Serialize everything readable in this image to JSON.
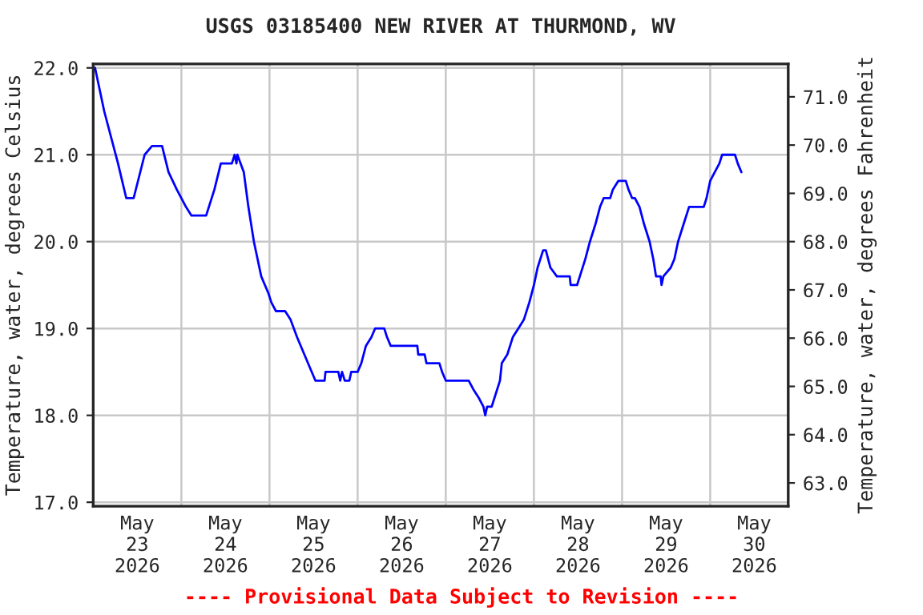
{
  "chart_data": {
    "type": "line",
    "title": "USGS 03185400 NEW RIVER AT THURMOND, WV",
    "ylabel": "Temperature, water, degrees Celsius",
    "y2label": "Temperature, water, degrees Fahrenheit",
    "annotations": [
      "---- Provisional Data Subject to Revision ----"
    ],
    "grid": true,
    "legend": false,
    "marker": "none",
    "line_style": "solid",
    "xlim": [
      "2026-05-23T00:00",
      "2026-05-30T21:15"
    ],
    "xticks": [
      {
        "value": "2026-05-24T00:00",
        "label": null
      },
      {
        "value": "2026-05-25T00:00",
        "label": null
      },
      {
        "value": "2026-05-26T00:00",
        "label": null
      },
      {
        "value": "2026-05-27T00:00",
        "label": null
      },
      {
        "value": "2026-05-28T00:00",
        "label": null
      },
      {
        "value": "2026-05-29T00:00",
        "label": null
      },
      {
        "value": "2026-05-30T00:00",
        "label": null
      },
      {
        "value": "2026-05-23T12:00",
        "label": "May\n23\n2026"
      },
      {
        "value": "2026-05-24T12:00",
        "label": "May\n24\n2026"
      },
      {
        "value": "2026-05-25T12:00",
        "label": "May\n25\n2026"
      },
      {
        "value": "2026-05-26T12:00",
        "label": "May\n26\n2026"
      },
      {
        "value": "2026-05-27T12:00",
        "label": "May\n27\n2026"
      },
      {
        "value": "2026-05-28T12:00",
        "label": "May\n28\n2026"
      },
      {
        "value": "2026-05-29T12:00",
        "label": "May\n29\n2026"
      },
      {
        "value": "2026-05-30T12:00",
        "label": "May\n30\n2026"
      }
    ],
    "ylim": [
      16.955,
      22.045
    ],
    "yticks": [
      {
        "value": 17,
        "label": "17.0"
      },
      {
        "value": 18,
        "label": "18.0"
      },
      {
        "value": 19,
        "label": "19.0"
      },
      {
        "value": 20,
        "label": "20.0"
      },
      {
        "value": 21,
        "label": "21.0"
      },
      {
        "value": 22,
        "label": "22.0"
      }
    ],
    "y2lim": [
      62.519,
      71.681
    ],
    "y2ticks": [
      {
        "value": 63,
        "label": "63.0"
      },
      {
        "value": 64,
        "label": "64.0"
      },
      {
        "value": 65,
        "label": "65.0"
      },
      {
        "value": 66,
        "label": "66.0"
      },
      {
        "value": 67,
        "label": "67.0"
      },
      {
        "value": 68,
        "label": "68.0"
      },
      {
        "value": 69,
        "label": "69.0"
      },
      {
        "value": 70,
        "label": "70.0"
      },
      {
        "value": 71,
        "label": "71.0"
      }
    ],
    "series": [
      {
        "color": "#0000ff",
        "x": [
          "2026-05-23T00:30",
          "2026-05-23T03:00",
          "2026-05-23T06:45",
          "2026-05-23T09:00",
          "2026-05-23T11:00",
          "2026-05-23T14:00",
          "2026-05-23T16:00",
          "2026-05-23T18:45",
          "2026-05-23T20:30",
          "2026-05-23T22:45",
          "2026-05-24T01:15",
          "2026-05-24T02:45",
          "2026-05-24T06:45",
          "2026-05-24T09:00",
          "2026-05-24T10:45",
          "2026-05-24T13:45",
          "2026-05-24T14:30",
          "2026-05-24T15:00",
          "2026-05-24T15:15",
          "2026-05-24T17:00",
          "2026-05-24T18:15",
          "2026-05-24T19:45",
          "2026-05-24T21:45",
          "2026-05-24T23:45",
          "2026-05-25T00:30",
          "2026-05-25T01:45",
          "2026-05-25T04:15",
          "2026-05-25T05:45",
          "2026-05-25T07:30",
          "2026-05-25T09:30",
          "2026-05-25T11:30",
          "2026-05-25T12:30",
          "2026-05-25T15:00",
          "2026-05-25T15:15",
          "2026-05-25T18:45",
          "2026-05-25T19:15",
          "2026-05-25T19:45",
          "2026-05-25T20:30",
          "2026-05-25T21:45",
          "2026-05-25T22:15",
          "2026-05-26T00:00",
          "2026-05-26T01:00",
          "2026-05-26T02:15",
          "2026-05-26T03:45",
          "2026-05-26T04:45",
          "2026-05-26T07:15",
          "2026-05-26T08:00",
          "2026-05-26T09:00",
          "2026-05-26T16:15",
          "2026-05-26T16:30",
          "2026-05-26T18:15",
          "2026-05-26T18:45",
          "2026-05-26T22:15",
          "2026-05-26T23:00",
          "2026-05-27T00:00",
          "2026-05-27T06:15",
          "2026-05-27T07:30",
          "2026-05-27T09:00",
          "2026-05-27T10:15",
          "2026-05-27T10:45",
          "2026-05-27T11:15",
          "2026-05-27T12:30",
          "2026-05-27T13:15",
          "2026-05-27T14:45",
          "2026-05-27T15:15",
          "2026-05-27T16:45",
          "2026-05-27T18:15",
          "2026-05-27T19:45",
          "2026-05-27T21:15",
          "2026-05-27T22:45",
          "2026-05-28T00:00",
          "2026-05-28T01:00",
          "2026-05-28T02:30",
          "2026-05-28T03:15",
          "2026-05-28T04:30",
          "2026-05-28T06:15",
          "2026-05-28T09:45",
          "2026-05-28T10:00",
          "2026-05-28T11:45",
          "2026-05-28T12:30",
          "2026-05-28T14:00",
          "2026-05-28T15:15",
          "2026-05-28T16:45",
          "2026-05-28T18:00",
          "2026-05-28T19:00",
          "2026-05-28T20:45",
          "2026-05-28T21:30",
          "2026-05-28T23:00",
          "2026-05-29T01:00",
          "2026-05-29T01:45",
          "2026-05-29T02:45",
          "2026-05-29T03:30",
          "2026-05-29T04:45",
          "2026-05-29T06:00",
          "2026-05-29T07:30",
          "2026-05-29T08:30",
          "2026-05-29T09:15",
          "2026-05-29T10:30",
          "2026-05-29T10:45",
          "2026-05-29T11:15",
          "2026-05-29T13:15",
          "2026-05-29T14:15",
          "2026-05-29T15:15",
          "2026-05-29T16:45",
          "2026-05-29T18:15",
          "2026-05-29T22:15",
          "2026-05-29T23:00",
          "2026-05-30T00:00",
          "2026-05-30T01:15",
          "2026-05-30T02:30",
          "2026-05-30T03:15",
          "2026-05-30T06:45",
          "2026-05-30T07:30",
          "2026-05-30T08:30"
        ],
        "values": [
          22.0,
          21.5,
          20.9,
          20.5,
          20.5,
          21.0,
          21.1,
          21.1,
          20.8,
          20.6,
          20.4,
          20.3,
          20.3,
          20.6,
          20.9,
          20.9,
          21.0,
          20.9,
          21.0,
          20.8,
          20.4,
          20.0,
          19.6,
          19.4,
          19.3,
          19.2,
          19.2,
          19.1,
          18.9,
          18.7,
          18.5,
          18.4,
          18.4,
          18.5,
          18.5,
          18.4,
          18.5,
          18.4,
          18.4,
          18.5,
          18.5,
          18.6,
          18.8,
          18.9,
          19.0,
          19.0,
          18.9,
          18.8,
          18.8,
          18.7,
          18.7,
          18.6,
          18.6,
          18.5,
          18.4,
          18.4,
          18.3,
          18.2,
          18.1,
          18.0,
          18.1,
          18.1,
          18.2,
          18.4,
          18.6,
          18.7,
          18.9,
          19.0,
          19.1,
          19.3,
          19.5,
          19.7,
          19.9,
          19.9,
          19.7,
          19.6,
          19.6,
          19.5,
          19.5,
          19.6,
          19.8,
          20.0,
          20.2,
          20.4,
          20.5,
          20.5,
          20.6,
          20.7,
          20.7,
          20.6,
          20.5,
          20.5,
          20.4,
          20.2,
          20.0,
          19.8,
          19.6,
          19.6,
          19.5,
          19.6,
          19.7,
          19.8,
          20.0,
          20.2,
          20.4,
          20.4,
          20.5,
          20.7,
          20.8,
          20.9,
          21.0,
          21.0,
          20.9,
          20.8
        ]
      }
    ]
  }
}
